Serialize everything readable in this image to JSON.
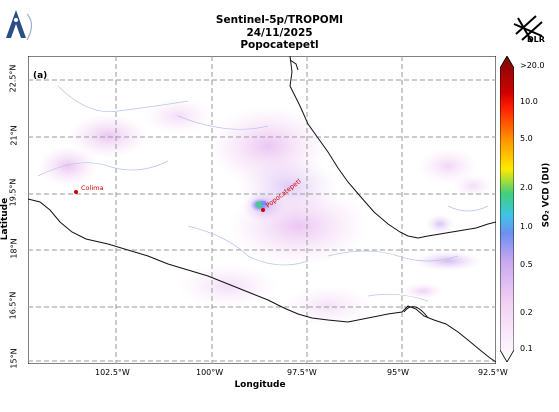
{
  "header": {
    "line1": "Sentinel-5p/TROPOMI",
    "line2": "24/11/2025",
    "line3": "Popocatepetl"
  },
  "logos": {
    "left": "academy-logo",
    "right_text": "DLR"
  },
  "panel_label": "(a)",
  "axes": {
    "xlabel": "Longitude",
    "ylabel": "Latitude",
    "xticks": [
      "102.5°W",
      "100°W",
      "97.5°W",
      "95°W",
      "92.5°W"
    ],
    "yticks": [
      "22.5°N",
      "21°N",
      "19.5°N",
      "18°N",
      "16.5°N",
      "15°N"
    ]
  },
  "places": {
    "colima": "Colima",
    "popocatepetl": "Popocatepetl"
  },
  "colorbar": {
    "label": "SO₂ VCD (DU)",
    "ticks": [
      ">20.0",
      "10.0",
      "5.0",
      "2.0",
      "1.0",
      "0.5",
      "0.2",
      "0.1"
    ],
    "colors": {
      "top": "#7a0a0a",
      "red": "#ff2000",
      "orange": "#ff9a00",
      "yellow": "#ffea00",
      "green": "#3fd07a",
      "cyan": "#3fc4e8",
      "blue": "#6f8ff0",
      "violet": "#c8a8f0",
      "pink": "#f5d5f5",
      "bottom": "#ffffff"
    }
  }
}
